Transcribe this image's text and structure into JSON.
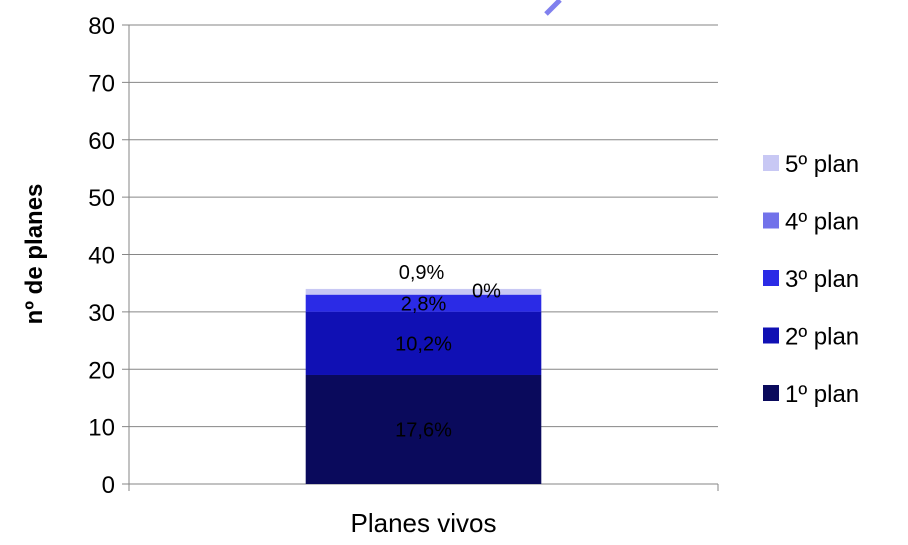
{
  "chart_data": {
    "type": "bar",
    "stacked": true,
    "title": "",
    "xlabel": "",
    "ylabel": "nº de planes",
    "ylim": [
      0,
      80
    ],
    "yticks": [
      0,
      10,
      20,
      30,
      40,
      50,
      60,
      70,
      80
    ],
    "grid": true,
    "legend_position": "right",
    "categories": [
      "Planes vivos"
    ],
    "series": [
      {
        "name": "1º plan",
        "values": [
          19
        ],
        "label": "17,6%",
        "color": "#0a0a5c"
      },
      {
        "name": "2º plan",
        "values": [
          11
        ],
        "label": "10,2%",
        "color": "#1010b4"
      },
      {
        "name": "3º plan",
        "values": [
          3
        ],
        "label": "2,8%",
        "color": "#2b2be6"
      },
      {
        "name": "4º plan",
        "values": [
          0
        ],
        "label": "0%",
        "color": "#7272ea"
      },
      {
        "name": "5º plan",
        "values": [
          1
        ],
        "label": "0,9%",
        "color": "#c8c8f4"
      }
    ]
  }
}
